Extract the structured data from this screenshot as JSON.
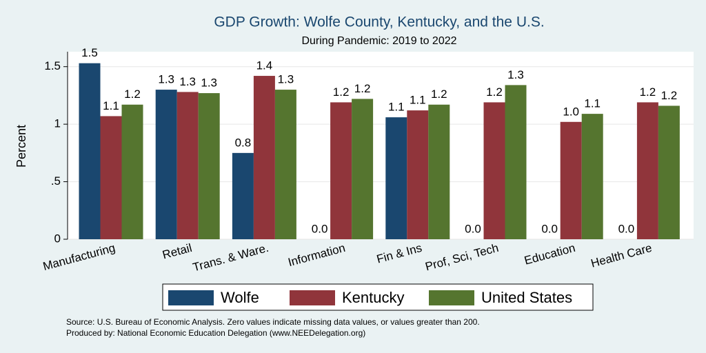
{
  "chart_data": {
    "type": "bar",
    "title": "GDP Growth: Wolfe County, Kentucky, and the U.S.",
    "subtitle": "During Pandemic: 2019 to 2022",
    "y_label": "Percent",
    "categories": [
      "Manufacturing",
      "Retail",
      "Trans. & Ware.",
      "Information",
      "Fin & Ins",
      "Prof, Sci, Tech",
      "Education",
      "Health Care"
    ],
    "series": [
      {
        "name": "Wolfe",
        "color": "#1a476f",
        "values": [
          1.53,
          1.3,
          0.75,
          0,
          1.06,
          0,
          0,
          0
        ],
        "value_labels": [
          "1.5",
          "1.3",
          "0.8",
          "0.0",
          "1.1",
          "0.0",
          "0.0",
          "0.0"
        ]
      },
      {
        "name": "Kentucky",
        "color": "#90353b",
        "values": [
          1.07,
          1.28,
          1.42,
          1.19,
          1.12,
          1.19,
          1.02,
          1.19
        ],
        "value_labels": [
          "1.1",
          "1.3",
          "1.4",
          "1.2",
          "1.1",
          "1.2",
          "1.0",
          "1.2"
        ]
      },
      {
        "name": "United States",
        "color": "#55752f",
        "values": [
          1.17,
          1.27,
          1.3,
          1.22,
          1.17,
          1.34,
          1.09,
          1.16
        ],
        "value_labels": [
          "1.2",
          "1.3",
          "1.3",
          "1.2",
          "1.2",
          "1.3",
          "1.1",
          "1.2"
        ]
      }
    ],
    "ylim": [
      0,
      1.63
    ],
    "yticks": [
      0,
      {
        "value": 0.5,
        "label": ".5"
      },
      1,
      1.5
    ],
    "grid": true,
    "legend": "bottom",
    "notes": [
      "Source: U.S. Bureau of Economic Analysis. Zero values indicate missing data values, or values greater than 200.",
      "Produced by: National Economic Education Delegation (www.NEEDelegation.org)"
    ]
  }
}
